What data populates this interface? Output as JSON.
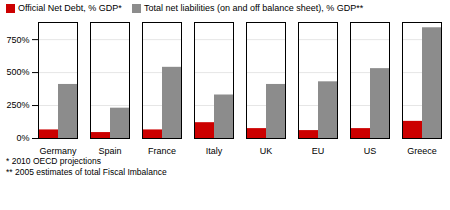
{
  "chart_data": {
    "type": "bar",
    "categories": [
      "Germany",
      "Spain",
      "France",
      "Italy",
      "UK",
      "EU",
      "US",
      "Greece"
    ],
    "series": [
      {
        "name": "Official Net Debt, % GDP*",
        "color": "#cc0000",
        "values": [
          65,
          45,
          65,
          120,
          75,
          60,
          75,
          130
        ]
      },
      {
        "name": "Total net liabilities (on and off balance sheet), % GDP**",
        "color": "#8c8c8c",
        "values": [
          410,
          230,
          540,
          330,
          410,
          430,
          530,
          840
        ]
      }
    ],
    "ylim": [
      0,
      880
    ],
    "yticks": [
      {
        "value": 0,
        "label": "0%"
      },
      {
        "value": 250,
        "label": "250%"
      },
      {
        "value": 500,
        "label": "500%"
      },
      {
        "value": 750,
        "label": "750%"
      }
    ],
    "grid": true,
    "legend": "top",
    "annotations": [
      "* 2010 OECD projections",
      "** 2005 estimates of total Fiscal Imbalance"
    ]
  }
}
